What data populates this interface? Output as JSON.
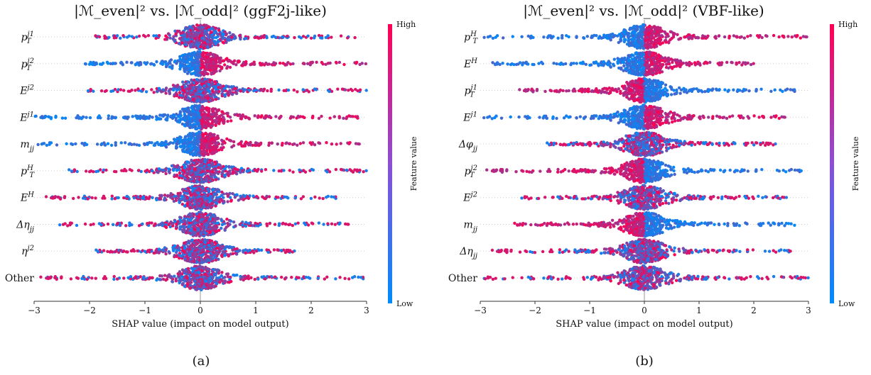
{
  "chart_data": [
    {
      "type": "scatter",
      "subtype": "beeswarm",
      "title": "|ℳ_even|² vs. |ℳ_odd|² (ggF2j-like)",
      "subfigure_label": "(a)",
      "xlabel": "SHAP value (impact on model output)",
      "xlim": [
        -3,
        3
      ],
      "xticks": [
        "−3",
        "−2",
        "−1",
        "0",
        "1",
        "2",
        "3"
      ],
      "features": [
        {
          "label": "p_T^{j1}",
          "min": -1.9,
          "max": 2.8,
          "high_side": "both"
        },
        {
          "label": "p_T^{j2}",
          "min": -2.2,
          "max": 3.0,
          "high_side": "positive"
        },
        {
          "label": "E^{j2}",
          "min": -2.1,
          "max": 3.0,
          "high_side": "both"
        },
        {
          "label": "E^{j1}",
          "min": -3.0,
          "max": 2.9,
          "high_side": "positive"
        },
        {
          "label": "m_jj",
          "min": -3.0,
          "max": 2.9,
          "high_side": "positive"
        },
        {
          "label": "p_T^H",
          "min": -2.4,
          "max": 3.0,
          "high_side": "both"
        },
        {
          "label": "E^H",
          "min": -2.8,
          "max": 2.5,
          "high_side": "both"
        },
        {
          "label": "Δη_jj",
          "min": -2.6,
          "max": 2.7,
          "high_side": "both"
        },
        {
          "label": "η^{j2}",
          "min": -1.9,
          "max": 1.7,
          "high_side": "both"
        },
        {
          "label": "Other",
          "min": -2.9,
          "max": 3.0,
          "high_side": "both"
        }
      ],
      "colorbar": {
        "label": "Feature value",
        "high": "High",
        "low": "Low",
        "high_color": "#ff0052",
        "low_color": "#008bfb"
      },
      "grid": false
    },
    {
      "type": "scatter",
      "subtype": "beeswarm",
      "title": "|ℳ_even|² vs. |ℳ_odd|² (VBF-like)",
      "subfigure_label": "(b)",
      "xlabel": "SHAP value (impact on model output)",
      "xlim": [
        -3,
        3
      ],
      "xticks": [
        "−3",
        "−2",
        "−1",
        "0",
        "1",
        "2",
        "3"
      ],
      "features": [
        {
          "label": "p_T^H",
          "min": -3.0,
          "max": 3.0,
          "high_side": "positive"
        },
        {
          "label": "E^H",
          "min": -2.8,
          "max": 2.0,
          "high_side": "positive"
        },
        {
          "label": "p_T^{j1}",
          "min": -2.3,
          "max": 2.8,
          "high_side": "negative"
        },
        {
          "label": "E^{j1}",
          "min": -3.0,
          "max": 2.6,
          "high_side": "positive"
        },
        {
          "label": "Δφ_jj",
          "min": -1.8,
          "max": 2.4,
          "high_side": "both"
        },
        {
          "label": "p_T^{j2}",
          "min": -2.9,
          "max": 2.9,
          "high_side": "negative"
        },
        {
          "label": "E^{j2}",
          "min": -2.3,
          "max": 2.6,
          "high_side": "both"
        },
        {
          "label": "m_jj",
          "min": -2.4,
          "max": 2.8,
          "high_side": "negative"
        },
        {
          "label": "Δη_jj",
          "min": -2.8,
          "max": 2.7,
          "high_side": "both"
        },
        {
          "label": "Other",
          "min": -3.0,
          "max": 3.0,
          "high_side": "both"
        }
      ],
      "colorbar": {
        "label": "Feature value",
        "high": "High",
        "low": "Low",
        "high_color": "#ff0052",
        "low_color": "#008bfb"
      },
      "grid": false
    }
  ]
}
